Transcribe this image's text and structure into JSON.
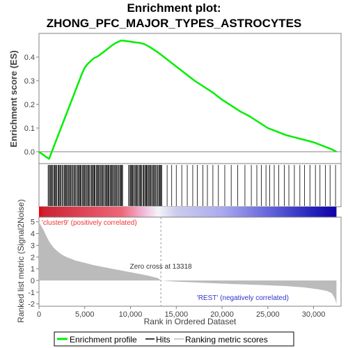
{
  "chart_data": {
    "type": "line",
    "title_line1": "Enrichment plot:",
    "title_line2": "ZHONG_PFC_MAJOR_TYPES_ASTROCYTES",
    "xlabel": "Rank in Ordered Dataset",
    "xlim": [
      0,
      33000
    ],
    "x_ticks": [
      0,
      5000,
      10000,
      15000,
      20000,
      25000,
      30000
    ],
    "x_tick_labels": [
      "0",
      "5,000",
      "10,000",
      "15,000",
      "20,000",
      "25,000",
      "30,000"
    ],
    "es_panel": {
      "ylabel": "Enrichment score (ES)",
      "ylim": [
        -0.05,
        0.5
      ],
      "y_ticks": [
        0.0,
        0.1,
        0.2,
        0.3,
        0.4
      ],
      "y_tick_labels": [
        "0.0",
        "0.1",
        "0.2",
        "0.3",
        "0.4"
      ],
      "series": [
        {
          "name": "Enrichment profile",
          "color": "#00ee00",
          "x": [
            0,
            700,
            1100,
            1400,
            1700,
            2000,
            2300,
            2600,
            2900,
            3200,
            3500,
            3800,
            4100,
            4400,
            4700,
            5000,
            5300,
            5700,
            6000,
            6500,
            7000,
            7500,
            8000,
            8500,
            9000,
            9500,
            10000,
            10500,
            11000,
            11500,
            12000,
            13000,
            14000,
            15000,
            16000,
            17000,
            18000,
            19000,
            20000,
            21000,
            22000,
            23000,
            24000,
            25000,
            26000,
            27000,
            28000,
            29000,
            30000,
            31000,
            32000,
            32500
          ],
          "y": [
            0.0,
            -0.02,
            -0.03,
            0.0,
            0.03,
            0.06,
            0.09,
            0.12,
            0.15,
            0.18,
            0.21,
            0.24,
            0.27,
            0.3,
            0.33,
            0.355,
            0.37,
            0.385,
            0.395,
            0.405,
            0.42,
            0.435,
            0.45,
            0.462,
            0.47,
            0.468,
            0.465,
            0.462,
            0.46,
            0.455,
            0.445,
            0.42,
            0.39,
            0.36,
            0.33,
            0.3,
            0.275,
            0.25,
            0.22,
            0.195,
            0.17,
            0.15,
            0.125,
            0.1,
            0.085,
            0.07,
            0.06,
            0.05,
            0.04,
            0.025,
            0.01,
            0.0
          ]
        }
      ]
    },
    "hits": {
      "name": "Hits",
      "color": "#000000",
      "dense_ranges": [
        [
          1000,
          9200
        ],
        [
          9800,
          13500
        ]
      ],
      "sparse_positions": [
        14000,
        14500,
        15000,
        15600,
        16200,
        16800,
        17300,
        17900,
        18400,
        19000,
        19600,
        20300,
        21000,
        21700,
        22500,
        23200,
        23800,
        24300,
        24800,
        25200,
        25700,
        26200,
        26800,
        27300,
        27900,
        28500,
        29000,
        29600,
        30200,
        30700,
        31300,
        31800,
        32400
      ]
    },
    "color_bar": {
      "stops": [
        {
          "x": 0,
          "color": "#ee0000"
        },
        {
          "x": 500,
          "color": "#cc2233"
        },
        {
          "x": 9000,
          "color": "#ee6677"
        },
        {
          "x": 11500,
          "color": "#f2bbdd"
        },
        {
          "x": 13000,
          "color": "#f4f4f8"
        },
        {
          "x": 15000,
          "color": "#ccccee"
        },
        {
          "x": 20000,
          "color": "#aaaaee"
        },
        {
          "x": 25000,
          "color": "#6666dd"
        },
        {
          "x": 30000,
          "color": "#2222bb"
        },
        {
          "x": 32500,
          "color": "#1100aa"
        }
      ]
    },
    "metric_panel": {
      "ylabel": "Ranked list metric (Signal2Noise)",
      "ylim": [
        -2.2,
        5.4
      ],
      "y_ticks": [
        -2,
        -1,
        0,
        1,
        2,
        3,
        4,
        5
      ],
      "y_tick_labels": [
        "-2",
        "-1",
        "0",
        "1",
        "2",
        "3",
        "4",
        "5"
      ],
      "series": [
        {
          "name": "Ranking metric scores",
          "color": "#bbbbbb",
          "x": [
            0,
            200,
            500,
            800,
            1200,
            1600,
            2000,
            2500,
            3000,
            3500,
            4000,
            5000,
            6000,
            7000,
            8000,
            9000,
            10000,
            11000,
            12000,
            13000,
            13318,
            15000,
            18000,
            21000,
            24000,
            27000,
            29000,
            30500,
            31500,
            32000,
            32300,
            32500
          ],
          "y": [
            5.0,
            4.7,
            4.3,
            3.8,
            3.2,
            2.8,
            2.5,
            2.2,
            2.0,
            1.85,
            1.7,
            1.5,
            1.3,
            1.15,
            1.0,
            0.85,
            0.7,
            0.55,
            0.4,
            0.2,
            0.0,
            -0.1,
            -0.2,
            -0.3,
            -0.38,
            -0.48,
            -0.6,
            -0.75,
            -0.9,
            -1.1,
            -1.5,
            -2.0
          ]
        }
      ],
      "zero_cross_x": 13318,
      "zero_cross_label": "Zero cross at 13318",
      "pos_label": "'cluster9' (positively correlated)",
      "neg_label": "'REST' (negatively correlated)"
    },
    "legend": {
      "placement": "bottom-center",
      "entries": [
        {
          "label": "Enrichment profile",
          "color": "#00ee00"
        },
        {
          "label": "Hits",
          "color": "#000000"
        },
        {
          "label": "Ranking metric scores",
          "color": "#cccccc"
        }
      ]
    }
  }
}
